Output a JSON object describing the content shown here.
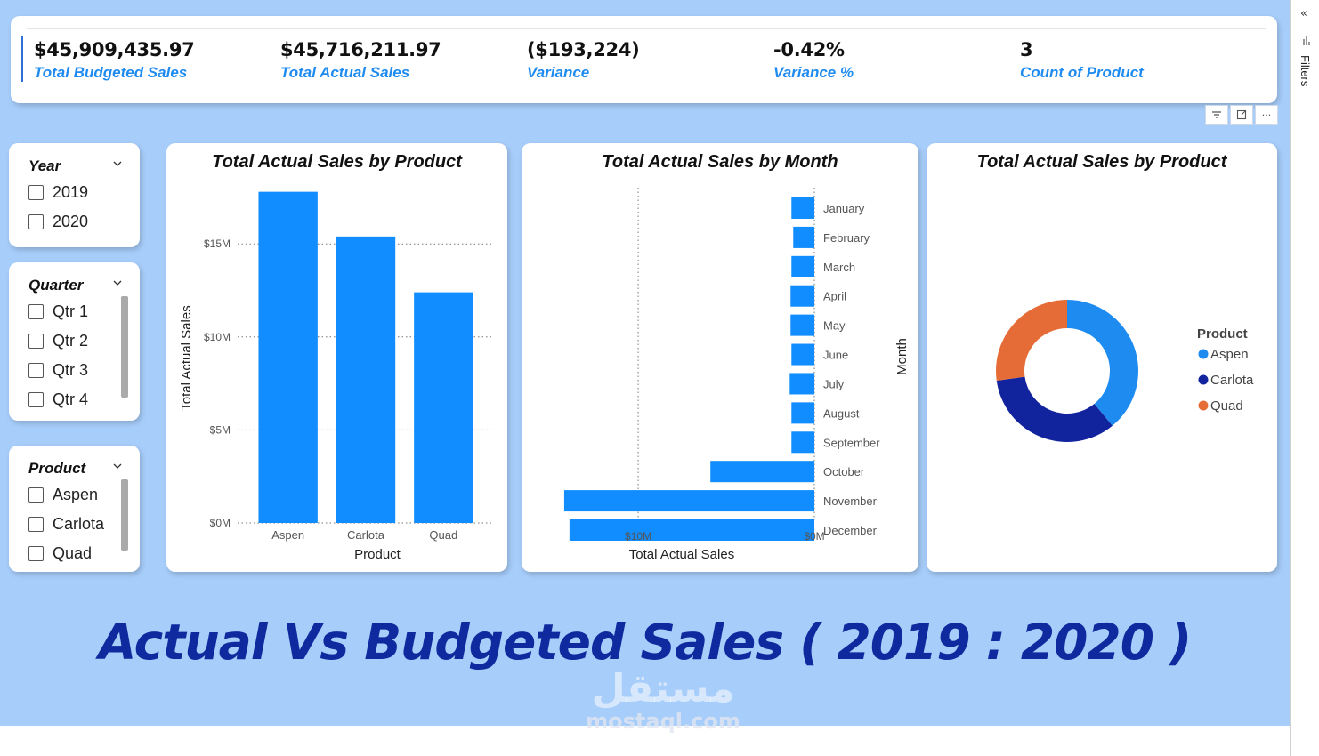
{
  "kpis": [
    {
      "value": "$45,909,435.97",
      "label": "Total Budgeted Sales"
    },
    {
      "value": "$45,716,211.97",
      "label": "Total Actual Sales"
    },
    {
      "value": "($193,224)",
      "label": "Variance"
    },
    {
      "value": "-0.42%",
      "label": "Variance %"
    },
    {
      "value": "3",
      "label": "Count of Product"
    }
  ],
  "visual_header": {
    "icons": [
      "filter-icon",
      "focus-mode-icon",
      "more-options-icon"
    ],
    "more_glyph": "···"
  },
  "filters_pane": {
    "label": "Filters",
    "collapse_glyph": "«"
  },
  "slicers": {
    "year": {
      "title": "Year",
      "items": [
        "2019",
        "2020"
      ]
    },
    "quarter": {
      "title": "Quarter",
      "items": [
        "Qtr 1",
        "Qtr 2",
        "Qtr 3",
        "Qtr 4"
      ]
    },
    "product": {
      "title": "Product",
      "items": [
        "Aspen",
        "Carlota",
        "Quad"
      ]
    }
  },
  "colors": {
    "accent": "#1e8bf0",
    "bar": "#118dff",
    "aspen": "#1e8bf0",
    "carlota": "#12239e",
    "quad": "#e66c37",
    "banner": "#0e2a9e",
    "canvas": "#a7cdfa"
  },
  "chart_data": [
    {
      "type": "bar",
      "title": "Total Actual Sales by Product",
      "categories": [
        "Aspen",
        "Carlota",
        "Quad"
      ],
      "values": [
        17.8,
        15.4,
        12.4
      ],
      "xlabel": "Product",
      "ylabel": "Total Actual Sales",
      "ylim": [
        0,
        18.5
      ],
      "yticks": [
        0,
        5,
        10,
        15
      ],
      "ytick_labels": [
        "$0M",
        "$5M",
        "$10M",
        "$15M"
      ],
      "grid": true
    },
    {
      "type": "bar",
      "orientation": "horizontal",
      "title": "Total Actual Sales by Month",
      "categories": [
        "January",
        "February",
        "March",
        "April",
        "May",
        "June",
        "July",
        "August",
        "September",
        "October",
        "November",
        "December"
      ],
      "values": [
        1.3,
        1.2,
        1.3,
        1.35,
        1.35,
        1.3,
        1.4,
        1.3,
        1.3,
        5.9,
        14.2,
        13.9
      ],
      "xlabel": "Total Actual Sales",
      "ylabel": "Month",
      "xlim": [
        0,
        14.5
      ],
      "xticks": [
        10,
        0
      ],
      "xtick_labels": [
        "$10M",
        "$0M"
      ],
      "x_reversed": true,
      "grid": true
    },
    {
      "type": "pie",
      "subtype": "donut",
      "title": "Total Actual Sales by Product",
      "categories": [
        "Aspen",
        "Carlota",
        "Quad"
      ],
      "values": [
        17.8,
        15.4,
        12.4
      ],
      "legend_title": "Product",
      "legend": "right"
    }
  ],
  "banner": "Actual Vs Budgeted Sales ( 2019 : 2020 )",
  "watermark": {
    "arabic": "مستقل",
    "latin": "mostaql.com"
  }
}
